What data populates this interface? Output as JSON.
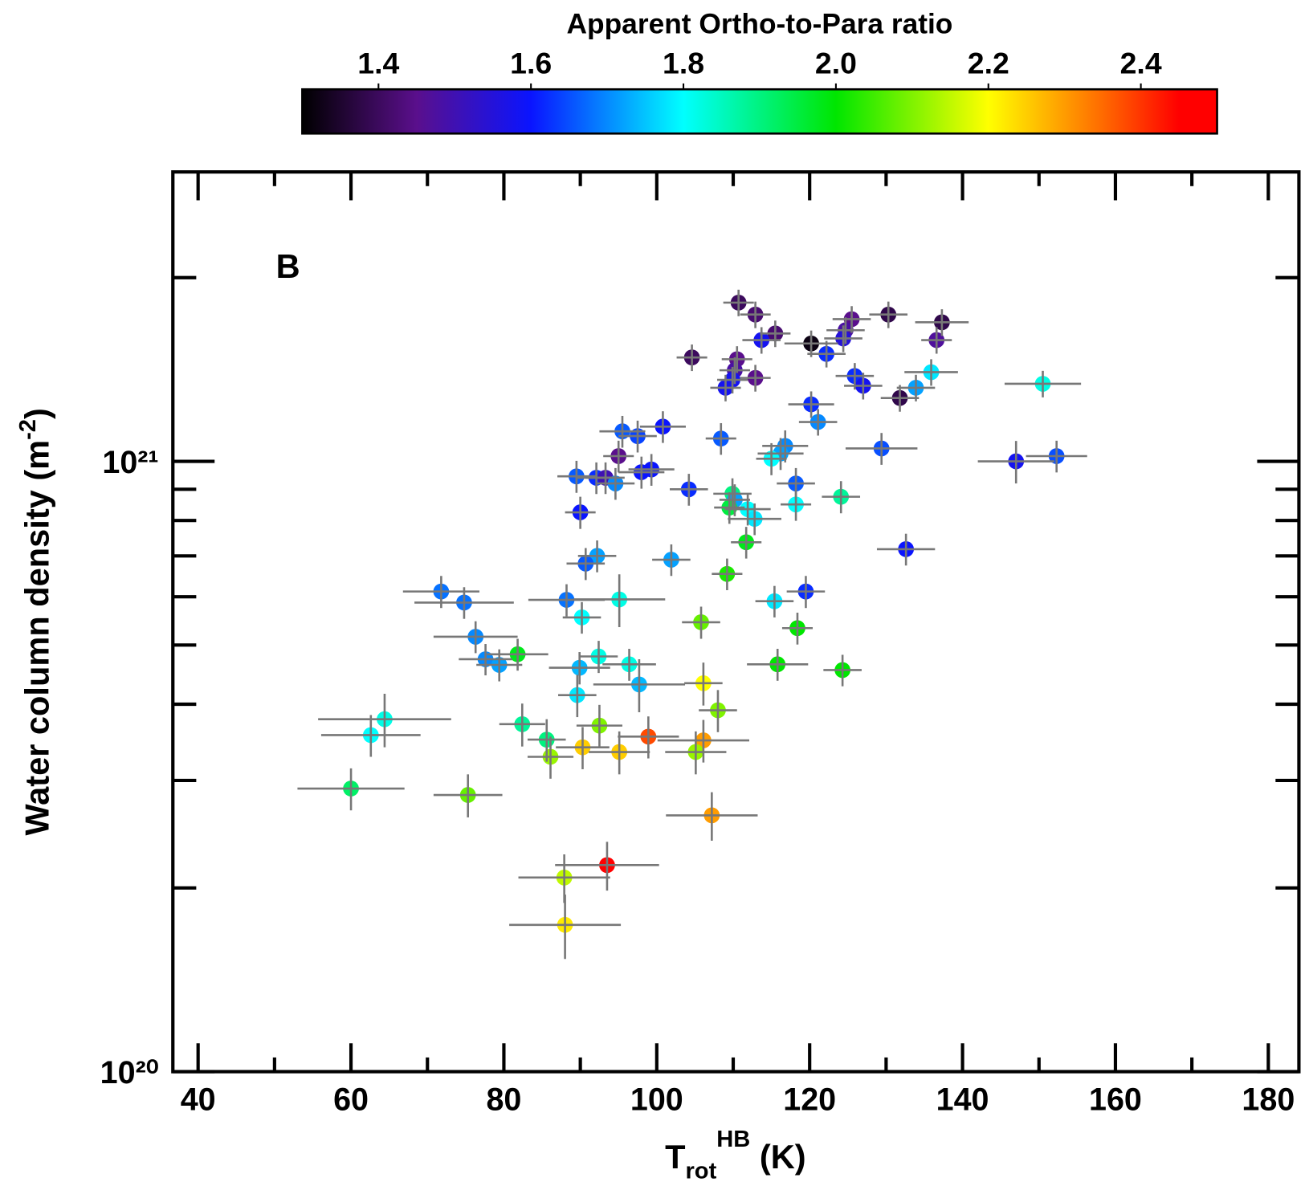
{
  "chart_data": {
    "type": "scatter",
    "panel_label": "B",
    "xlabel": {
      "text": "T",
      "sub": "rot",
      "sup": "HB",
      "rest": " (K)"
    },
    "ylabel": {
      "text": "Water column density (m",
      "sup": "-2",
      "rest": ")"
    },
    "xlim": [
      36.7,
      184.0
    ],
    "xticks": [
      40,
      60,
      80,
      100,
      120,
      140,
      160,
      180
    ],
    "xminor_ticks": [
      50,
      70,
      90,
      110,
      130,
      150,
      170
    ],
    "yscale": "log",
    "ylim": [
      1e+20,
      2.98e+21
    ],
    "yticks": [
      {
        "value": 1e+20,
        "label": "10²⁰"
      },
      {
        "value": 1e+21,
        "label": "10²¹"
      }
    ],
    "yminor_ticks": [
      2e+20,
      3e+20,
      4e+20,
      5e+20,
      6e+20,
      7e+20,
      8e+20,
      9e+20,
      2e+21
    ],
    "errorbar_color": "#777777",
    "colorbar": {
      "label": "Apparent Ortho-to-Para ratio",
      "lim": [
        1.3,
        2.5
      ],
      "ticks": [
        1.4,
        1.6,
        1.8,
        {
          "value": 2,
          "label": "2.0"
        },
        2.2,
        2.4
      ],
      "colormap": [
        {
          "value": 1.3,
          "color": "#000000"
        },
        {
          "value": 1.45,
          "color": "#5a0f8c"
        },
        {
          "value": 1.6,
          "color": "#0a14ff"
        },
        {
          "value": 1.8,
          "color": "#00ffff"
        },
        {
          "value": 2.0,
          "color": "#00e600"
        },
        {
          "value": 2.2,
          "color": "#ffff00"
        },
        {
          "value": 2.35,
          "color": "#ff6a00"
        },
        {
          "value": 2.45,
          "color": "#ff0000"
        },
        {
          "value": 2.5,
          "color": "#ff0000"
        }
      ]
    },
    "x": [
      110.7,
      112.9,
      115.5,
      113.7,
      120.2,
      122.2,
      125.5,
      124.7,
      124.4,
      130.3,
      137.3,
      136.6,
      104.6,
      110.5,
      110.2,
      109.9,
      109.0,
      112.9,
      125.9,
      127.0,
      131.8,
      133.9,
      135.9,
      150.5,
      120.2,
      121.1,
      95.5,
      97.5,
      100.8,
      108.4,
      116.8,
      116.2,
      115.0,
      129.4,
      147.0,
      152.3,
      95.0,
      98.0,
      99.3,
      89.5,
      92.1,
      93.3,
      94.6,
      104.2,
      118.2,
      109.9,
      110.2,
      109.5,
      111.9,
      112.8,
      118.2,
      124.1,
      90.0,
      111.7,
      132.6,
      92.2,
      90.7,
      101.9,
      109.2,
      71.8,
      74.8,
      88.2,
      95.1,
      115.4,
      119.5,
      90.2,
      105.8,
      118.4,
      76.3,
      81.8,
      77.6,
      79.4,
      92.4,
      96.4,
      89.9,
      115.8,
      124.3,
      97.7,
      106.1,
      89.6,
      108.0,
      64.4,
      62.6,
      82.4,
      92.5,
      85.6,
      98.9,
      106.1,
      90.3,
      95.1,
      86.1,
      105.1,
      60.0,
      75.3,
      107.2,
      93.5,
      87.9,
      88.0
    ],
    "y": [
      1.82e+21,
      1.74e+21,
      1.62e+21,
      1.58e+21,
      1.56e+21,
      1.5e+21,
      1.71e+21,
      1.64e+21,
      1.59e+21,
      1.74e+21,
      1.69e+21,
      1.58e+21,
      1.48e+21,
      1.47e+21,
      1.41e+21,
      1.36e+21,
      1.32e+21,
      1.37e+21,
      1.38e+21,
      1.33e+21,
      1.27e+21,
      1.32e+21,
      1.4e+21,
      1.34e+21,
      1.24e+21,
      1.16e+21,
      1.12e+21,
      1.1e+21,
      1.14e+21,
      1.09e+21,
      1.06e+21,
      1.03e+21,
      1.01e+21,
      1.05e+21,
      1e+21,
      1.02e+21,
      1.02e+21,
      9.6e+20,
      9.7e+20,
      9.45e+20,
      9.4e+20,
      9.4e+20,
      9.2e+20,
      9e+20,
      9.2e+20,
      8.85e+20,
      8.65e+20,
      8.4e+20,
      8.35e+20,
      8.05e+20,
      8.5e+20,
      8.75e+20,
      8.25e+20,
      7.37e+20,
      7.18e+20,
      7e+20,
      6.8e+20,
      6.9e+20,
      6.54e+20,
      6.12e+20,
      5.87e+20,
      5.93e+20,
      5.94e+20,
      5.9e+20,
      6.12e+20,
      5.55e+20,
      5.45e+20,
      5.33e+20,
      5.16e+20,
      4.83e+20,
      4.74e+20,
      4.64e+20,
      4.79e+20,
      4.65e+20,
      4.59e+20,
      4.65e+20,
      4.55e+20,
      4.31e+20,
      4.33e+20,
      4.14e+20,
      3.91e+20,
      3.78e+20,
      3.56e+20,
      3.71e+20,
      3.69e+20,
      3.5e+20,
      3.54e+20,
      3.49e+20,
      3.4e+20,
      3.34e+20,
      3.28e+20,
      3.34e+20,
      2.91e+20,
      2.84e+20,
      2.63e+20,
      2.18e+20,
      2.08e+20,
      1.74e+20
    ],
    "xerr": [
      2,
      2,
      2,
      2.5,
      3.5,
      2.5,
      2.5,
      2.5,
      2.5,
      2.5,
      3.5,
      2,
      2,
      2,
      2,
      2,
      2,
      2,
      2.5,
      2.5,
      2.5,
      2.5,
      3.5,
      5,
      3,
      2.5,
      3,
      2.5,
      3,
      2,
      3,
      3,
      2,
      4.7,
      5,
      4,
      2,
      3,
      3,
      2.5,
      2.5,
      2.5,
      2.5,
      2.5,
      2.5,
      2.5,
      2,
      2,
      3,
      3.5,
      2,
      2.5,
      2,
      2,
      3.8,
      2.5,
      2.5,
      2.5,
      2,
      5,
      6.5,
      5,
      6,
      2.5,
      2.5,
      2.5,
      2.5,
      2,
      5.5,
      4,
      3.5,
      3,
      2.5,
      3.5,
      4,
      4,
      2.5,
      6,
      2.5,
      2.5,
      2.5,
      8.7,
      6.5,
      3,
      3,
      2.5,
      4,
      6,
      3.5,
      4,
      3,
      4,
      7,
      4.5,
      6,
      6.8,
      6,
      7.3
    ],
    "yerr": [
      9.1e+19,
      8.7e+19,
      8.1e+19,
      7.9e+19,
      7.8e+19,
      7.5e+19,
      8.6e+19,
      8.2e+19,
      8e+19,
      8.7e+19,
      8.5e+19,
      7.9e+19,
      7.4e+19,
      7.4e+19,
      7.1e+19,
      6.8e+19,
      6.6e+19,
      6.9e+19,
      6.9e+19,
      6.7e+19,
      6.4e+19,
      6.6e+19,
      7e+19,
      6.7e+19,
      6.2e+19,
      5.8e+19,
      6.7e+19,
      6.6e+19,
      6.8e+19,
      6.5e+19,
      6.4e+19,
      6.2e+19,
      6.1e+19,
      6.3e+19,
      8e+19,
      6.1e+19,
      6.1e+19,
      5.8e+19,
      5.8e+19,
      5.7e+19,
      5.6e+19,
      5.6e+19,
      5.5e+19,
      5.4e+19,
      5.5e+19,
      5.3e+19,
      5.2e+19,
      5e+19,
      5e+19,
      4.8e+19,
      5.1e+19,
      5.3e+19,
      5e+19,
      4.4e+19,
      4.3e+19,
      4.2e+19,
      4.1e+19,
      4.1e+19,
      3.9e+19,
      3.7e+19,
      3.5e+19,
      3.6e+19,
      5.9e+19,
      3.5e+19,
      3.7e+19,
      3.3e+19,
      3.3e+19,
      3.2e+19,
      3.1e+19,
      2.9e+19,
      2.8e+19,
      2.8e+19,
      2.9e+19,
      2.8e+19,
      2.8e+19,
      2.8e+19,
      2.7e+19,
      4.3e+19,
      3.5e+19,
      3.3e+19,
      3.1e+19,
      3.8e+19,
      2.8e+19,
      3e+19,
      3e+19,
      2.8e+19,
      2.8e+19,
      2.8e+19,
      2.7e+19,
      2.7e+19,
      2.6e+19,
      2.7e+19,
      2.3e+19,
      2.3e+19,
      2.4e+19,
      2e+19,
      1.9e+19,
      2.1e+19
    ],
    "ratio": [
      1.4,
      1.42,
      1.42,
      1.58,
      1.32,
      1.62,
      1.45,
      1.48,
      1.55,
      1.38,
      1.38,
      1.47,
      1.4,
      1.45,
      1.48,
      1.58,
      1.58,
      1.45,
      1.62,
      1.58,
      1.38,
      1.72,
      1.78,
      1.82,
      1.62,
      1.7,
      1.66,
      1.64,
      1.6,
      1.66,
      1.7,
      1.72,
      1.8,
      1.65,
      1.58,
      1.65,
      1.45,
      1.6,
      1.6,
      1.66,
      1.62,
      1.5,
      1.7,
      1.62,
      1.66,
      1.9,
      1.72,
      1.95,
      1.8,
      1.78,
      1.8,
      1.88,
      1.6,
      1.98,
      1.6,
      1.72,
      1.66,
      1.72,
      2.02,
      1.68,
      1.68,
      1.68,
      1.82,
      1.78,
      1.62,
      1.8,
      2.08,
      2.0,
      1.7,
      1.98,
      1.7,
      1.72,
      1.82,
      1.82,
      1.74,
      2.0,
      2.0,
      1.74,
      2.2,
      1.78,
      2.1,
      1.82,
      1.8,
      1.88,
      2.1,
      1.9,
      2.38,
      2.3,
      2.25,
      2.25,
      2.12,
      2.12,
      1.92,
      2.08,
      2.3,
      2.45,
      2.15,
      2.22
    ]
  }
}
